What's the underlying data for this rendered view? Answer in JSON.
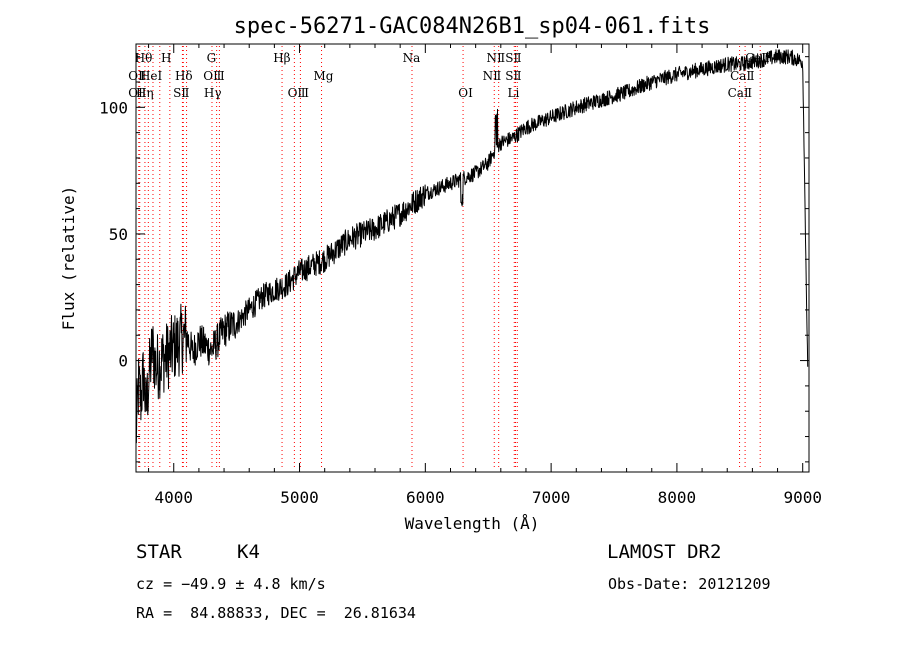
{
  "chart_data": {
    "type": "line",
    "title": "spec-56271-GAC084N26B1_sp04-061.fits",
    "xlabel": "Wavelength (Å)",
    "ylabel": "Flux (relative)",
    "xlim": [
      3700,
      9050
    ],
    "ylim": [
      -44,
      125
    ],
    "xticks": [
      4000,
      5000,
      6000,
      7000,
      8000,
      9000
    ],
    "xtick_labels": [
      "4000",
      "5000",
      "6000",
      "7000",
      "8000",
      "9000"
    ],
    "yticks": [
      0,
      50,
      100
    ],
    "ytick_labels": [
      "0",
      "50",
      "100"
    ],
    "grid": false,
    "line_color": "#000000",
    "line_marker_color": "#ff0000",
    "spectrum_anchors": {
      "x": [
        3700,
        3720,
        3740,
        3760,
        3780,
        3800,
        3830,
        3860,
        3900,
        3950,
        4000,
        4050,
        4100,
        4150,
        4200,
        4300,
        4400,
        4500,
        4600,
        4700,
        4800,
        4900,
        5000,
        5200,
        5400,
        5600,
        5800,
        6000,
        6200,
        6400,
        6500,
        6560,
        6600,
        6700,
        6800,
        7000,
        7200,
        7400,
        7600,
        7800,
        8000,
        8200,
        8400,
        8500,
        8600,
        8700,
        8800,
        8900,
        9000,
        9040
      ],
      "y": [
        -30,
        -10,
        -15,
        -5,
        -20,
        -8,
        5,
        -3,
        0,
        2,
        5,
        8,
        10,
        3,
        8,
        4,
        12,
        15,
        20,
        25,
        28,
        30,
        35,
        40,
        48,
        52,
        58,
        66,
        70,
        74,
        78,
        84,
        86,
        88,
        92,
        96,
        100,
        103,
        106,
        110,
        113,
        115,
        117,
        117,
        118,
        119,
        120,
        120,
        118,
        -5
      ]
    },
    "lines": [
      {
        "x": 3722,
        "labels": [
          "OⅡ"
        ]
      },
      {
        "x": 3730,
        "labels": [
          "OⅡ"
        ]
      },
      {
        "x": 3771,
        "labels": [
          "Hθ"
        ]
      },
      {
        "x": 3798,
        "labels": [
          "Hη"
        ]
      },
      {
        "x": 3835,
        "labels": [
          "HeⅠ"
        ]
      },
      {
        "x": 3889,
        "labels": [
          "Hη"
        ]
      },
      {
        "x": 3969,
        "labels": [
          "H"
        ]
      },
      {
        "x": 4069,
        "labels": [
          "SⅡ"
        ]
      },
      {
        "x": 4076,
        "labels": [
          "SⅡ"
        ]
      },
      {
        "x": 4102,
        "labels": [
          "Hδ"
        ]
      },
      {
        "x": 4304,
        "labels": [
          "G"
        ]
      },
      {
        "x": 4341,
        "labels": [
          "Hγ"
        ]
      },
      {
        "x": 4363,
        "labels": [
          "OⅢ"
        ]
      },
      {
        "x": 4861,
        "labels": [
          "Hβ"
        ]
      },
      {
        "x": 4959,
        "labels": [
          "OⅢ"
        ]
      },
      {
        "x": 5007,
        "labels": [
          "OⅢ"
        ]
      },
      {
        "x": 5175,
        "labels": [
          "Mg"
        ]
      },
      {
        "x": 5894,
        "labels": [
          "Na"
        ]
      },
      {
        "x": 6300,
        "labels": [
          "OⅠ"
        ]
      },
      {
        "x": 6548,
        "labels": [
          "NⅡ"
        ]
      },
      {
        "x": 6583,
        "labels": [
          "NⅡ"
        ]
      },
      {
        "x": 6707,
        "labels": [
          "Li"
        ]
      },
      {
        "x": 6717,
        "labels": [
          "SⅡ"
        ]
      },
      {
        "x": 6731,
        "labels": [
          "SⅡ"
        ]
      },
      {
        "x": 8498,
        "labels": [
          "CaⅡ"
        ]
      },
      {
        "x": 8542,
        "labels": [
          "CaⅡ"
        ]
      },
      {
        "x": 8662,
        "labels": [
          "CaⅡ"
        ]
      }
    ],
    "line_labels": [
      {
        "text": "Hθ",
        "x": 3760,
        "row": 1
      },
      {
        "text": "H",
        "x": 3940,
        "row": 1
      },
      {
        "text": "G",
        "x": 4300,
        "row": 1
      },
      {
        "text": "Hβ",
        "x": 4860,
        "row": 1
      },
      {
        "text": "Na",
        "x": 5890,
        "row": 1
      },
      {
        "text": "NⅡ",
        "x": 6560,
        "row": 1
      },
      {
        "text": "SⅡ",
        "x": 6700,
        "row": 1
      },
      {
        "text": "CaⅡ",
        "x": 8640,
        "row": 1
      },
      {
        "text": "OⅡ",
        "x": 3710,
        "row": 2
      },
      {
        "text": "HeⅠ",
        "x": 3820,
        "row": 2
      },
      {
        "text": "Hδ",
        "x": 4080,
        "row": 2
      },
      {
        "text": "OⅢ",
        "x": 4320,
        "row": 2
      },
      {
        "text": "Mg",
        "x": 5190,
        "row": 2
      },
      {
        "text": "NⅡ",
        "x": 6530,
        "row": 2
      },
      {
        "text": "SⅡ",
        "x": 6700,
        "row": 2
      },
      {
        "text": "CaⅡ",
        "x": 8520,
        "row": 2
      },
      {
        "text": "OⅡ",
        "x": 3710,
        "row": 3
      },
      {
        "text": "Hη",
        "x": 3770,
        "row": 3
      },
      {
        "text": "SⅡ",
        "x": 4060,
        "row": 3
      },
      {
        "text": "Hγ",
        "x": 4310,
        "row": 3
      },
      {
        "text": "OⅢ",
        "x": 4990,
        "row": 3
      },
      {
        "text": "OⅠ",
        "x": 6320,
        "row": 3
      },
      {
        "text": "Li",
        "x": 6700,
        "row": 3
      },
      {
        "text": "CaⅡ",
        "x": 8500,
        "row": 3
      }
    ]
  },
  "info": {
    "object_class": "STAR",
    "subclass": "K4",
    "survey": "LAMOST DR2",
    "redshift": "cz = −49.9 ± 4.8 km/s",
    "obs_date": "Obs-Date: 20121209",
    "coords": "RA =  84.88833, DEC =  26.81634"
  }
}
